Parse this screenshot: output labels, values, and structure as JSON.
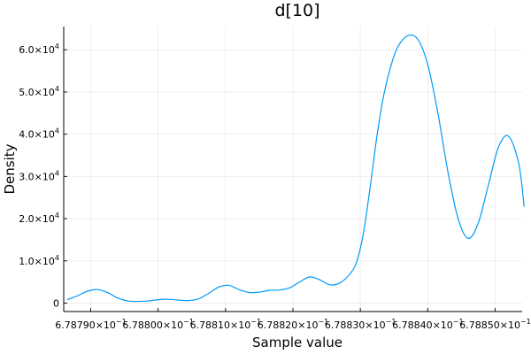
{
  "chart_data": {
    "type": "line",
    "title": "d[10]",
    "xlabel": "Sample value",
    "ylabel": "Density",
    "grid": true,
    "legend": "none",
    "xlim": [
      0.678786,
      0.678854
    ],
    "ylim": [
      -2000,
      65500
    ],
    "x_ticks": [
      {
        "value": 0.67879,
        "label": "6.78790×10",
        "exp": "−1"
      },
      {
        "value": 0.6788,
        "label": "6.78800×10",
        "exp": "−1"
      },
      {
        "value": 0.67881,
        "label": "6.78810×10",
        "exp": "−1"
      },
      {
        "value": 0.67882,
        "label": "6.78820×10",
        "exp": "−1"
      },
      {
        "value": 0.67883,
        "label": "6.78830×10",
        "exp": "−1"
      },
      {
        "value": 0.67884,
        "label": "6.78840×10",
        "exp": "−1"
      },
      {
        "value": 0.67885,
        "label": "6.78850×10",
        "exp": "−1"
      }
    ],
    "y_ticks": [
      {
        "value": 0,
        "label": "0",
        "exp": ""
      },
      {
        "value": 10000,
        "label": "1.0×10",
        "exp": "4"
      },
      {
        "value": 20000,
        "label": "2.0×10",
        "exp": "4"
      },
      {
        "value": 30000,
        "label": "3.0×10",
        "exp": "4"
      },
      {
        "value": 40000,
        "label": "4.0×10",
        "exp": "4"
      },
      {
        "value": 50000,
        "label": "5.0×10",
        "exp": "4"
      },
      {
        "value": 60000,
        "label": "6.0×10",
        "exp": "4"
      }
    ],
    "colors": {
      "series": "#009AFA"
    },
    "series": [
      {
        "x": [
          0.6787865,
          0.678788,
          0.6787895,
          0.678791,
          0.6787925,
          0.678794,
          0.6787955,
          0.678797,
          0.6787985,
          0.6788,
          0.6788015,
          0.678803,
          0.6788045,
          0.678806,
          0.6788075,
          0.678809,
          0.6788105,
          0.678812,
          0.6788135,
          0.678815,
          0.6788165,
          0.678818,
          0.6788195,
          0.678821,
          0.6788225,
          0.678824,
          0.6788255,
          0.678827,
          0.6788285,
          0.6788295,
          0.6788305,
          0.6788315,
          0.6788325,
          0.6788335,
          0.6788345,
          0.6788355,
          0.678837,
          0.6788385,
          0.67884,
          0.6788415,
          0.678843,
          0.6788445,
          0.678846,
          0.6788475,
          0.678849,
          0.6788505,
          0.678852,
          0.6788535,
          0.6788543
        ],
        "y": [
          800,
          1700,
          2800,
          3200,
          2500,
          1200,
          500,
          400,
          500,
          800,
          900,
          700,
          600,
          1000,
          2300,
          3800,
          4200,
          3200,
          2500,
          2600,
          3000,
          3100,
          3600,
          5000,
          6200,
          5500,
          4300,
          4800,
          7000,
          10000,
          17000,
          28000,
          40000,
          49500,
          56000,
          60500,
          63300,
          62500,
          56500,
          45000,
          31000,
          20000,
          15300,
          19000,
          28000,
          37000,
          39500,
          33000,
          22800
        ]
      }
    ]
  }
}
